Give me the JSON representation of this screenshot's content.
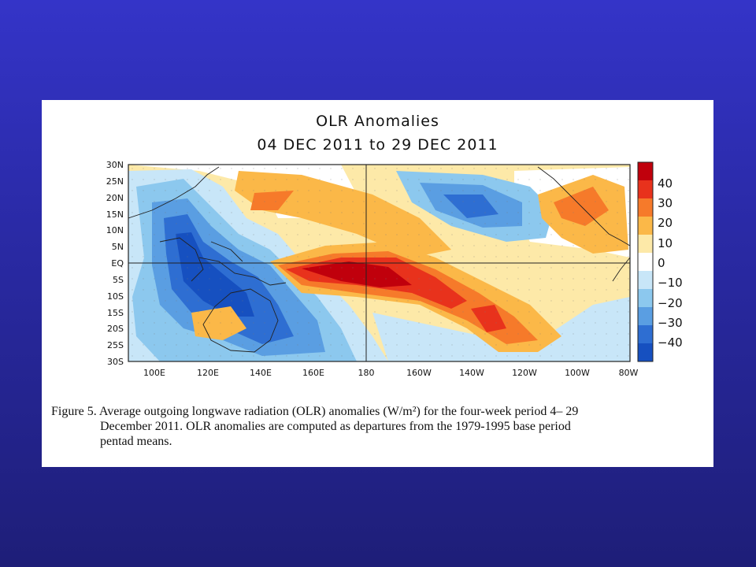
{
  "figure": {
    "title_line1": "OLR Anomalies",
    "title_line2": "04 DEC 2011 to 29 DEC 2011",
    "lat_labels": [
      "30N",
      "25N",
      "20N",
      "15N",
      "10N",
      "5N",
      "EQ",
      "5S",
      "10S",
      "15S",
      "20S",
      "25S",
      "30S"
    ],
    "lon_labels": [
      "100E",
      "120E",
      "140E",
      "160E",
      "180",
      "160W",
      "140W",
      "120W",
      "100W",
      "80W"
    ],
    "colorbar_labels": [
      "40",
      "30",
      "20",
      "10",
      "0",
      "−10",
      "−20",
      "−30",
      "−40"
    ],
    "colorbar_colors": [
      "#c0000c",
      "#e8321c",
      "#f67a2a",
      "#fbb848",
      "#fde9a8",
      "#ffffff",
      "#c8e6f8",
      "#8cc8ee",
      "#5a9ee2",
      "#2e6ed2",
      "#1650c0"
    ],
    "caption_line1": "Figure 5. Average outgoing longwave radiation (OLR) anomalies (W/m²) for the four-week period 4– 29",
    "caption_line2": "December 2011.  OLR anomalies are computed as departures from the 1979-1995 base period",
    "caption_line3": "pentad means."
  }
}
